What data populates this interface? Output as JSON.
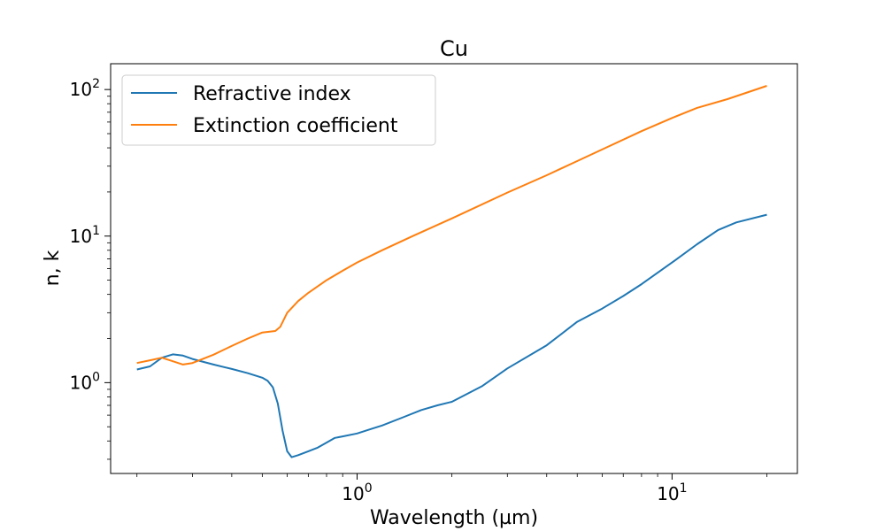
{
  "chart_data": {
    "type": "line",
    "title": "Cu",
    "xlabel": "Wavelength (µm)",
    "ylabel": "n, k",
    "xscale": "log",
    "yscale": "log",
    "xlim": [
      0.165,
      25
    ],
    "ylim": [
      0.24,
      150
    ],
    "grid": false,
    "legend_position": "top-left",
    "x_ticks": [
      {
        "value": 1,
        "base": "10",
        "exp": "0"
      },
      {
        "value": 10,
        "base": "10",
        "exp": "1"
      }
    ],
    "y_ticks": [
      {
        "value": 1,
        "base": "10",
        "exp": "0"
      },
      {
        "value": 10,
        "base": "10",
        "exp": "1"
      },
      {
        "value": 100,
        "base": "10",
        "exp": "2"
      }
    ],
    "series": [
      {
        "name": "Refractive index",
        "color": "#1f77b4",
        "x": [
          0.2,
          0.22,
          0.24,
          0.26,
          0.28,
          0.3,
          0.35,
          0.4,
          0.45,
          0.5,
          0.52,
          0.54,
          0.56,
          0.58,
          0.6,
          0.62,
          0.65,
          0.7,
          0.75,
          0.8,
          0.85,
          0.9,
          1.0,
          1.1,
          1.2,
          1.4,
          1.6,
          1.8,
          2.0,
          2.5,
          3.0,
          4.0,
          5.0,
          6.0,
          7.0,
          8.0,
          10.0,
          12.0,
          14.0,
          16.0,
          20.0
        ],
        "y": [
          1.23,
          1.29,
          1.48,
          1.56,
          1.53,
          1.45,
          1.33,
          1.24,
          1.16,
          1.08,
          1.03,
          0.93,
          0.72,
          0.47,
          0.34,
          0.31,
          0.32,
          0.34,
          0.36,
          0.39,
          0.42,
          0.43,
          0.45,
          0.48,
          0.51,
          0.58,
          0.65,
          0.7,
          0.74,
          0.95,
          1.25,
          1.8,
          2.6,
          3.2,
          3.9,
          4.7,
          6.6,
          8.8,
          11.0,
          12.4,
          14.0
        ]
      },
      {
        "name": "Extinction coefficient",
        "color": "#ff7f0e",
        "x": [
          0.2,
          0.22,
          0.24,
          0.26,
          0.28,
          0.3,
          0.35,
          0.4,
          0.45,
          0.5,
          0.55,
          0.57,
          0.6,
          0.65,
          0.7,
          0.8,
          0.9,
          1.0,
          1.2,
          1.5,
          2.0,
          3.0,
          4.0,
          5.0,
          6.0,
          8.0,
          10.0,
          12.0,
          15.0,
          20.0
        ],
        "y": [
          1.36,
          1.42,
          1.48,
          1.4,
          1.33,
          1.36,
          1.55,
          1.78,
          2.0,
          2.2,
          2.25,
          2.4,
          3.0,
          3.6,
          4.1,
          5.0,
          5.8,
          6.6,
          8.0,
          10.0,
          13.2,
          19.8,
          26.0,
          32.5,
          39.0,
          52.0,
          64.0,
          75.0,
          86.0,
          106.0
        ]
      }
    ]
  }
}
